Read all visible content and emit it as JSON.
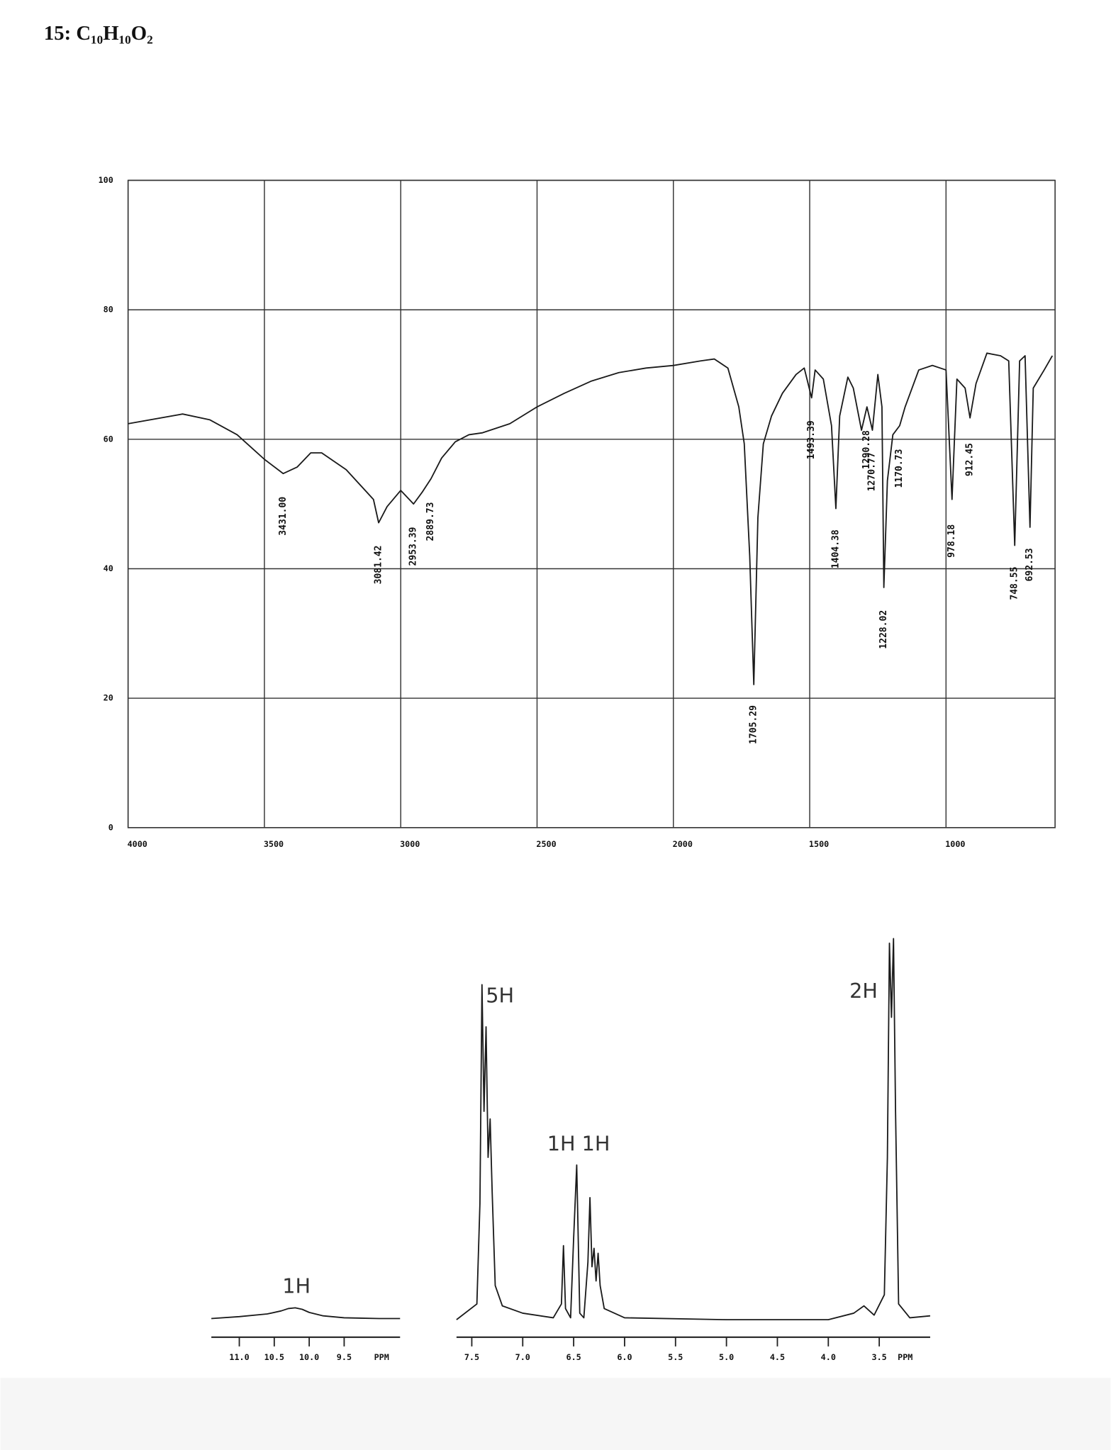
{
  "title": "15: C₁₀H₁₀O₂",
  "chart_data": [
    {
      "type": "line",
      "xlim": [
        4000,
        600
      ],
      "ylim": [
        0,
        100
      ],
      "xticks": [
        4000,
        3500,
        3000,
        2500,
        2000,
        1500,
        1000
      ],
      "yticks": [
        0,
        20,
        40,
        60,
        80,
        100
      ],
      "grid": true,
      "x": [
        4000,
        3800,
        3700,
        3600,
        3500,
        3431,
        3380,
        3330,
        3290,
        3200,
        3100,
        3081,
        3050,
        3000,
        2953,
        2920,
        2889,
        2850,
        2800,
        2750,
        2700,
        2650,
        2600,
        2500,
        2400,
        2300,
        2200,
        2100,
        2000,
        1900,
        1850,
        1800,
        1760,
        1740,
        1720,
        1705,
        1690,
        1670,
        1640,
        1600,
        1550,
        1520,
        1493,
        1480,
        1450,
        1420,
        1404,
        1390,
        1360,
        1340,
        1310,
        1290,
        1270,
        1250,
        1235,
        1228,
        1215,
        1195,
        1170,
        1150,
        1100,
        1050,
        1000,
        978,
        960,
        930,
        912,
        890,
        850,
        800,
        770,
        748,
        730,
        710,
        692,
        680,
        640,
        610
      ],
      "series": [
        {
          "color": "#1a1a1a",
          "values": [
            62.4,
            63.9,
            63,
            60.7,
            56.9,
            54.7,
            55.7,
            57.9,
            57.9,
            55.3,
            50.7,
            47.1,
            49.6,
            52.1,
            50,
            51.9,
            53.9,
            57.1,
            59.6,
            60.7,
            61,
            61.7,
            62.4,
            65,
            67.1,
            69,
            70.3,
            71,
            71.4,
            72.1,
            72.4,
            71,
            65,
            59.3,
            42,
            22.1,
            47.9,
            59.3,
            63.6,
            67.1,
            70,
            71,
            66.4,
            70.7,
            69.3,
            62.1,
            49.3,
            63.6,
            69.6,
            67.9,
            61.4,
            65,
            61.4,
            70,
            65,
            37.1,
            53.6,
            60.7,
            62.1,
            65,
            70.7,
            71.4,
            70.7,
            50.7,
            69.3,
            67.9,
            63.3,
            68.6,
            73.3,
            72.9,
            72.1,
            43.6,
            72.1,
            72.9,
            46.4,
            67.9,
            70.7,
            72.9
          ]
        }
      ],
      "annotations": [
        {
          "x": 3431.0,
          "label": "3431.00"
        },
        {
          "x": 3081.42,
          "label": "3081.42"
        },
        {
          "x": 2953.39,
          "label": "2953.39"
        },
        {
          "x": 2889.73,
          "label": "2889.73"
        },
        {
          "x": 1705.29,
          "label": "1705.29"
        },
        {
          "x": 1493.39,
          "label": "1493.39"
        },
        {
          "x": 1404.38,
          "label": "1404.38"
        },
        {
          "x": 1290.28,
          "label": "1290.28"
        },
        {
          "x": 1270.77,
          "label": "1270.77"
        },
        {
          "x": 1228.02,
          "label": "1228.02"
        },
        {
          "x": 1170.73,
          "label": "1170.73"
        },
        {
          "x": 978.18,
          "label": "978.18"
        },
        {
          "x": 912.45,
          "label": "912.45"
        },
        {
          "x": 748.55,
          "label": "748.55"
        },
        {
          "x": 692.53,
          "label": "692.53"
        }
      ]
    },
    {
      "type": "line",
      "xlim": [
        11.4,
        8.7
      ],
      "ylim": [
        0,
        100
      ],
      "xticks": [
        {
          "value": 11,
          "label": "11.0"
        },
        10.5,
        {
          "value": 10,
          "label": "10.0"
        },
        9.5
      ],
      "xlabel": "PPM",
      "x": [
        11.4,
        11.0,
        10.6,
        10.4,
        10.3,
        10.2,
        10.1,
        10.0,
        9.8,
        9.5,
        9.0,
        8.7
      ],
      "series": [
        {
          "color": "#1a1a1a",
          "values": [
            1.0,
            1.5,
            2.2,
            3,
            3.6,
            3.8,
            3.4,
            2.6,
            1.7,
            1.2,
            1.0,
            1.0
          ]
        }
      ],
      "annotations": [
        "1H"
      ]
    },
    {
      "type": "line",
      "xlim": [
        7.65,
        3.0
      ],
      "ylim": [
        0,
        100
      ],
      "xticks": [
        7.5,
        {
          "value": 7,
          "label": "7.0"
        },
        6.5,
        {
          "value": 6,
          "label": "6.0"
        },
        5.5,
        {
          "value": 5,
          "label": "5.0"
        },
        4.5,
        {
          "value": 4,
          "label": "4.0"
        },
        3.5
      ],
      "xlabel": "PPM",
      "x": [
        7.65,
        7.45,
        7.42,
        7.4,
        7.38,
        7.36,
        7.34,
        7.32,
        7.3,
        7.27,
        7.2,
        7.0,
        6.7,
        6.62,
        6.6,
        6.58,
        6.53,
        6.5,
        6.47,
        6.44,
        6.4,
        6.36,
        6.34,
        6.32,
        6.3,
        6.28,
        6.26,
        6.24,
        6.2,
        6.0,
        5.0,
        4.0,
        3.75,
        3.65,
        3.55,
        3.45,
        3.42,
        3.4,
        3.38,
        3.36,
        3.34,
        3.31,
        3.2,
        3.0
      ],
      "series": [
        {
          "color": "#1a1a1a",
          "values": [
            0.7,
            4.8,
            31,
            88,
            55,
            77,
            43,
            53,
            34,
            9.6,
            4.3,
            2.4,
            1.2,
            4.8,
            20,
            3.6,
            1.2,
            22,
            41,
            2.4,
            1.2,
            15.7,
            32.5,
            14.5,
            19.3,
            10.8,
            18,
            9.6,
            3.6,
            1.2,
            0.7,
            0.7,
            2.4,
            4.3,
            1.9,
            7.2,
            43,
            98.8,
            79.5,
            100,
            55,
            4.8,
            1.2,
            1.7
          ]
        }
      ],
      "annotations": [
        "5H",
        "1H 1H",
        "2H"
      ]
    }
  ]
}
